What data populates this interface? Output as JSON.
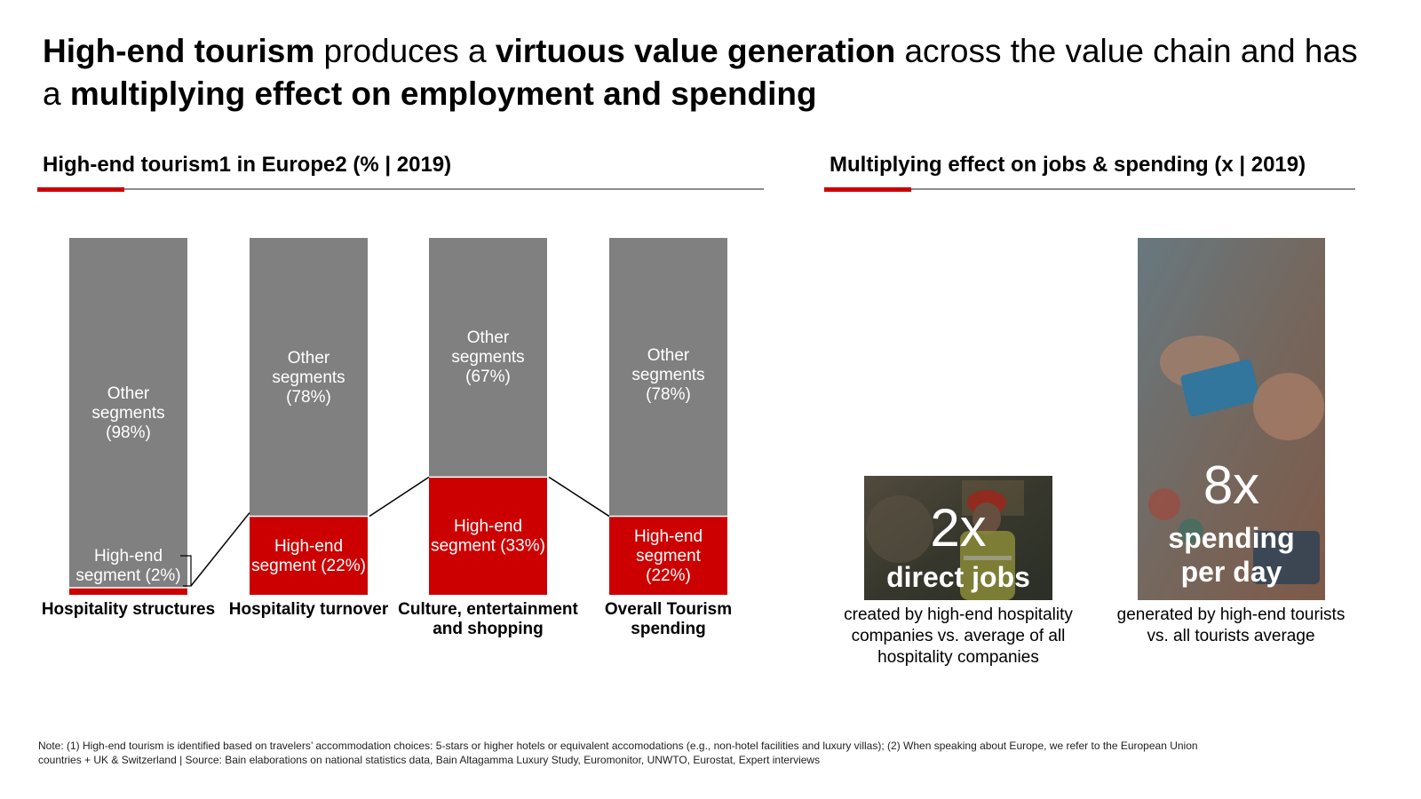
{
  "title": {
    "part1": "High-end tourism",
    "part2": " produces a ",
    "part3": "virtuous value generation",
    "part4": " across the value chain and has a ",
    "part5": "multiplying effect on employment and spending"
  },
  "left_section": {
    "heading": "High-end tourism1 in Europe2 (% | 2019)"
  },
  "right_section": {
    "heading": "Multiplying effect on jobs & spending (x | 2019)"
  },
  "colors": {
    "other": "#808080",
    "highend": "#cc0000",
    "accent": "#cc0000",
    "rule": "#8c8c8c"
  },
  "chart_data": {
    "type": "bar",
    "stacked": true,
    "unit": "%",
    "ylim": [
      0,
      100
    ],
    "categories": [
      [
        "Hospitality structures"
      ],
      [
        "Hospitality turnover"
      ],
      [
        "Culture, entertainment",
        "and shopping"
      ],
      [
        "Overall Tourism",
        "spending"
      ]
    ],
    "series": [
      {
        "name": "High-end segment",
        "values": [
          2,
          22,
          33,
          22
        ],
        "labels": [
          [
            "High-end",
            "segment (2%)"
          ],
          [
            "High-end",
            "segment (22%)"
          ],
          [
            "High-end",
            "segment (33%)"
          ],
          [
            "High-end",
            "segment",
            "(22%)"
          ]
        ]
      },
      {
        "name": "Other segments",
        "values": [
          98,
          78,
          67,
          78
        ],
        "labels": [
          [
            "Other",
            "segments",
            "(98%)"
          ],
          [
            "Other",
            "segments",
            "(78%)"
          ],
          [
            "Other",
            "segments",
            "(67%)"
          ],
          [
            "Other",
            "segments",
            "(78%)"
          ]
        ]
      }
    ]
  },
  "cards": [
    {
      "value": "2x",
      "label": "direct jobs",
      "icon": "worker-photo",
      "caption": [
        "created by high-end hospitality",
        "companies vs. average of all",
        "hospitality companies"
      ]
    },
    {
      "value": "8x",
      "label_line1": "spending",
      "label_line2": "per day",
      "icon": "card-payment-photo",
      "caption": [
        "generated by high-end tourists",
        "vs. all tourists average"
      ]
    }
  ],
  "note": {
    "line1": "Note: (1) High-end tourism is identified based on travelers’ accommodation choices: 5-stars or higher hotels or equivalent accomodations (e.g., non-hotel facilities and luxury villas); (2) When speaking about Europe, we refer to the European Union",
    "line2": "countries + UK & Switzerland | Source: Bain elaborations on national statistics data, Bain Altagamma Luxury Study, Euromonitor, UNWTO, Eurostat, Expert interviews"
  }
}
